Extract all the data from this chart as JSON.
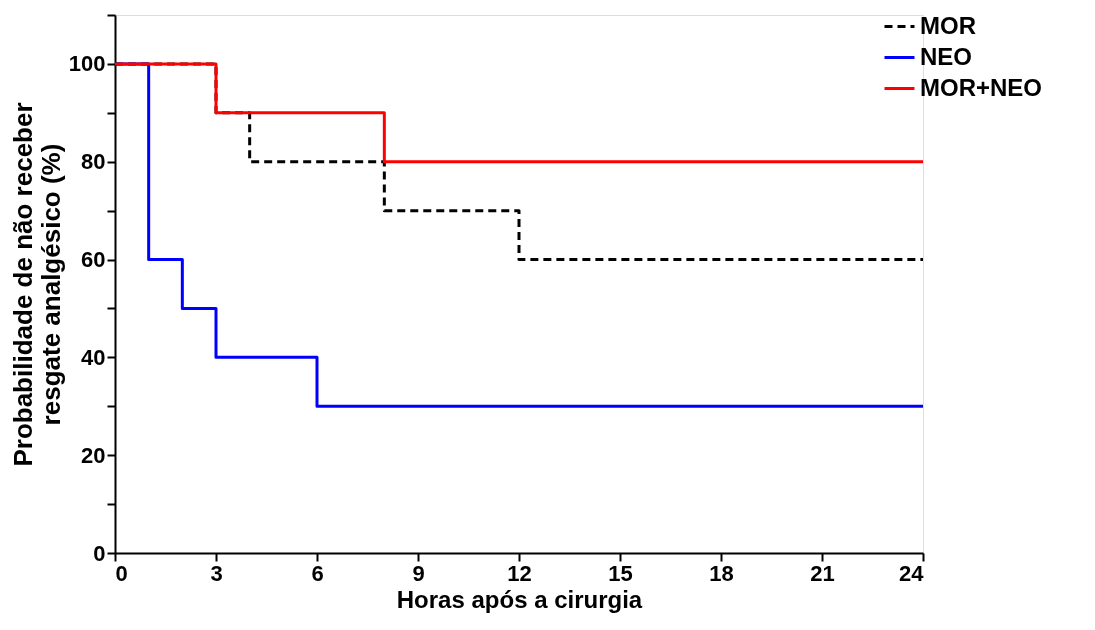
{
  "chart_data": {
    "type": "step",
    "xlabel": "Horas após a cirurgia",
    "ylabel": "Probabilidade de não receber\nresgate analgésico (%)",
    "xlim": [
      0,
      24
    ],
    "xticks": [
      0,
      3,
      6,
      9,
      12,
      15,
      18,
      21,
      24
    ],
    "ylim": [
      0,
      110
    ],
    "yticks": [
      0,
      {
        "value": 10,
        "label": null
      },
      20,
      {
        "value": 30,
        "label": null
      },
      40,
      {
        "value": 50,
        "label": null
      },
      60,
      {
        "value": 70,
        "label": null
      },
      80,
      {
        "value": 90,
        "label": null
      },
      100,
      {
        "value": 110,
        "label": null
      }
    ],
    "grid": false,
    "legend": "top right",
    "marker": "none",
    "series": [
      {
        "name": "MOR",
        "color": "#000000",
        "line_style": "dashed",
        "x": [
          0,
          3,
          4,
          8,
          12,
          24
        ],
        "values": [
          100,
          90,
          80,
          70,
          60,
          60
        ]
      },
      {
        "name": "NEO",
        "color": "#0000ff",
        "line_style": "solid",
        "x": [
          0,
          1,
          2,
          3,
          6,
          24
        ],
        "values": [
          100,
          60,
          50,
          40,
          30,
          30
        ]
      },
      {
        "name": "MOR+NEO",
        "color": "#ff0000",
        "line_style": "solid",
        "x": [
          0,
          3,
          8,
          24
        ],
        "values": [
          100,
          90,
          80,
          80
        ]
      }
    ]
  }
}
